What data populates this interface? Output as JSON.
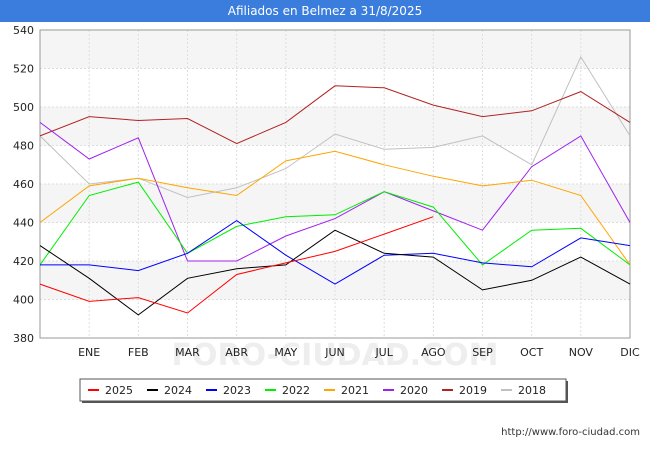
{
  "header": {
    "title": "Afiliados en Belmez a 31/8/2025"
  },
  "footer": {
    "url": "http://www.foro-ciudad.com"
  },
  "watermark": "FORO-CIUDAD.COM",
  "chart_data": {
    "type": "line",
    "categories": [
      "",
      "ENE",
      "FEB",
      "MAR",
      "ABR",
      "MAY",
      "JUN",
      "JUL",
      "AGO",
      "SEP",
      "OCT",
      "NOV",
      "DIC"
    ],
    "ylim": [
      380,
      540
    ],
    "yticks": [
      380,
      400,
      420,
      440,
      460,
      480,
      500,
      520,
      540
    ],
    "grid": true,
    "legend_position": "bottom",
    "series": [
      {
        "name": "2025",
        "color": "#ff0000",
        "values": [
          408,
          399,
          401,
          393,
          413,
          419,
          425,
          434,
          443,
          null,
          null,
          null,
          null
        ]
      },
      {
        "name": "2024",
        "color": "#000000",
        "values": [
          428,
          411,
          392,
          411,
          416,
          418,
          436,
          424,
          422,
          405,
          410,
          422,
          408
        ]
      },
      {
        "name": "2023",
        "color": "#0000ff",
        "values": [
          418,
          418,
          415,
          424,
          441,
          423,
          408,
          423,
          424,
          419,
          417,
          432,
          428
        ]
      },
      {
        "name": "2022",
        "color": "#00ee00",
        "values": [
          418,
          454,
          461,
          424,
          438,
          443,
          444,
          456,
          448,
          418,
          436,
          437,
          418
        ]
      },
      {
        "name": "2021",
        "color": "#ffa500",
        "values": [
          440,
          459,
          463,
          458,
          454,
          472,
          477,
          470,
          464,
          459,
          462,
          454,
          418
        ]
      },
      {
        "name": "2020",
        "color": "#a020f0",
        "values": [
          492,
          473,
          484,
          420,
          420,
          433,
          442,
          456,
          446,
          436,
          469,
          485,
          440
        ]
      },
      {
        "name": "2019",
        "color": "#b22222",
        "values": [
          485,
          495,
          493,
          494,
          481,
          492,
          511,
          510,
          501,
          495,
          498,
          508,
          492
        ]
      },
      {
        "name": "2018",
        "color": "#c0c0c0",
        "values": [
          485,
          460,
          463,
          453,
          458,
          468,
          486,
          478,
          479,
          485,
          470,
          526,
          485
        ]
      }
    ]
  }
}
